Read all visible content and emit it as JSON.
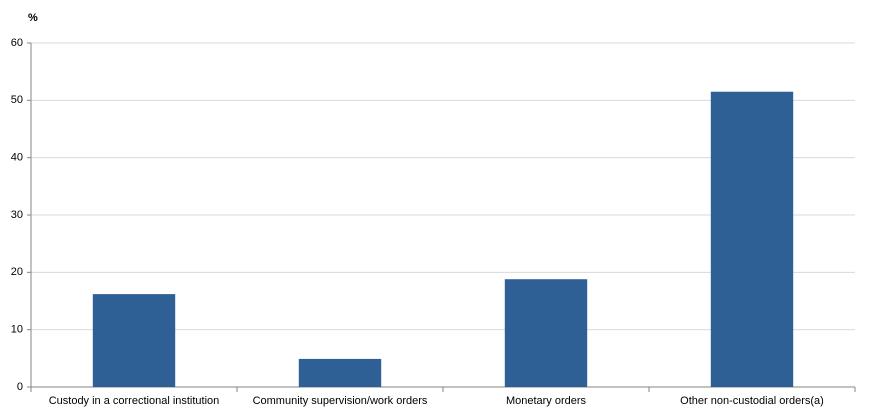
{
  "chart_data": {
    "type": "bar",
    "y_label": "%",
    "categories": [
      "Custody in a correctional institution",
      "Community supervision/work orders",
      "Monetary orders",
      "Other non-custodial orders(a)"
    ],
    "values": [
      16.2,
      4.9,
      18.8,
      51.5
    ],
    "color": "#2e6096",
    "ylim": [
      0,
      60
    ],
    "yticks": [
      0,
      10,
      20,
      30,
      40,
      50,
      60
    ],
    "grid": true
  }
}
